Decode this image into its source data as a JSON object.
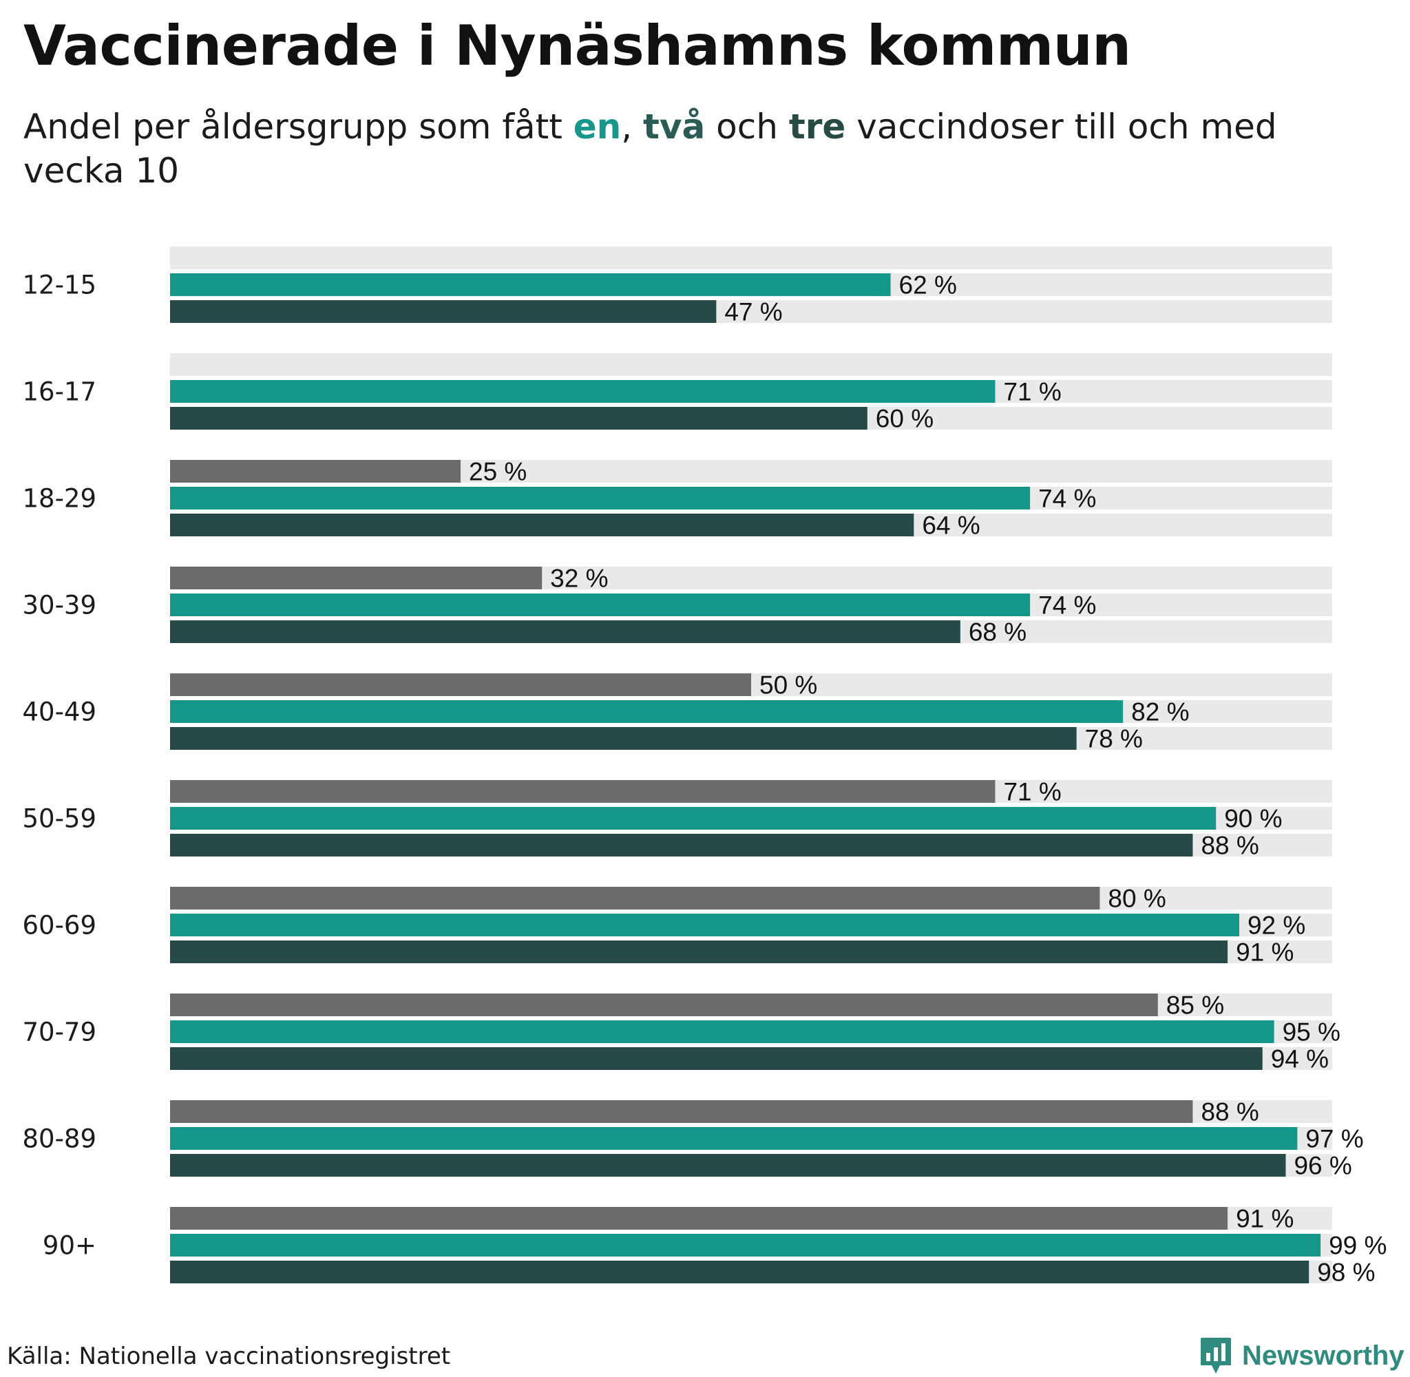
{
  "title": "Vaccinerade i Nynäshamns kommun",
  "subtitle": {
    "prefix": "Andel per åldersgrupp som fått ",
    "dose1": "en",
    "sep": ", ",
    "dose2": "två",
    "mid": " och ",
    "dose3": "tre",
    "suffix": " vaccindoser till och med vecka 10"
  },
  "source": "Källa: Nationella vaccinationsregistret",
  "brand": {
    "name": "Newsworthy",
    "icon": "newsworthy-logo-icon"
  },
  "colors": {
    "track": "#e9e9e9",
    "dose1": "#15978a",
    "dose2": "#264a47",
    "dose3": "#6b6b6b"
  },
  "chart_data": {
    "type": "bar",
    "orientation": "horizontal",
    "title": "Vaccinerade i Nynäshamns kommun",
    "unit": "%",
    "xlim": [
      0,
      100
    ],
    "grid": false,
    "legend": "inline in subtitle",
    "categories": [
      "12-15",
      "16-17",
      "18-29",
      "30-39",
      "40-49",
      "50-59",
      "60-69",
      "70-79",
      "80-89",
      "90+"
    ],
    "series": [
      {
        "name": "tre",
        "color": "#6b6b6b",
        "values": [
          null,
          null,
          25,
          32,
          50,
          71,
          80,
          85,
          88,
          91
        ]
      },
      {
        "name": "en",
        "color": "#15978a",
        "values": [
          62,
          71,
          74,
          74,
          82,
          90,
          92,
          95,
          97,
          99
        ]
      },
      {
        "name": "två",
        "color": "#264a47",
        "values": [
          47,
          60,
          64,
          68,
          78,
          88,
          91,
          94,
          96,
          98
        ]
      }
    ]
  }
}
